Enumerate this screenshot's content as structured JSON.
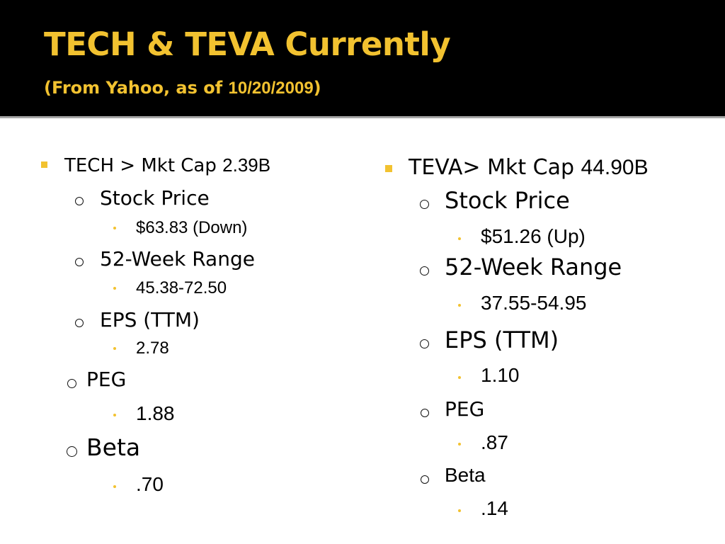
{
  "slide": {
    "title": "TECH & TEVA Currently",
    "subtitle_prefix": "(From Yahoo, as of ",
    "subtitle_date": "10/20/2009",
    "subtitle_suffix": ")"
  },
  "left": {
    "heading_label": "TECH > Mkt Cap ",
    "heading_value": "2.39B",
    "stock_price_label": "Stock Price",
    "stock_price_value": "$63.83 (Down)",
    "range_label": "52-Week Range",
    "range_value": "45.38-72.50",
    "eps_label": "EPS (TTM)",
    "eps_value": "2.78",
    "peg_label": "PEG",
    "peg_value": "1.88",
    "beta_label": "Beta",
    "beta_value": ".70"
  },
  "right": {
    "heading_label": "TEVA> Mkt Cap ",
    "heading_value": "44.90B",
    "stock_price_label": "Stock Price",
    "stock_price_value": "$51.26 (Up)",
    "range_label": "52-Week Range",
    "range_value": "37.55-54.95",
    "eps_label": "EPS (TTM)",
    "eps_value": "1.10",
    "peg_label": "PEG",
    "peg_value": ".87",
    "beta_label": "Beta",
    "beta_value": ".14"
  },
  "colors": {
    "header_bg": "#000000",
    "accent": "#f2c230",
    "divider": "#a6a6a6"
  },
  "icons": {
    "level1_bullet": "yellow-square-bullet",
    "level2_bullet": "hollow-circle-bullet",
    "level3_bullet": "yellow-dot-bullet"
  }
}
